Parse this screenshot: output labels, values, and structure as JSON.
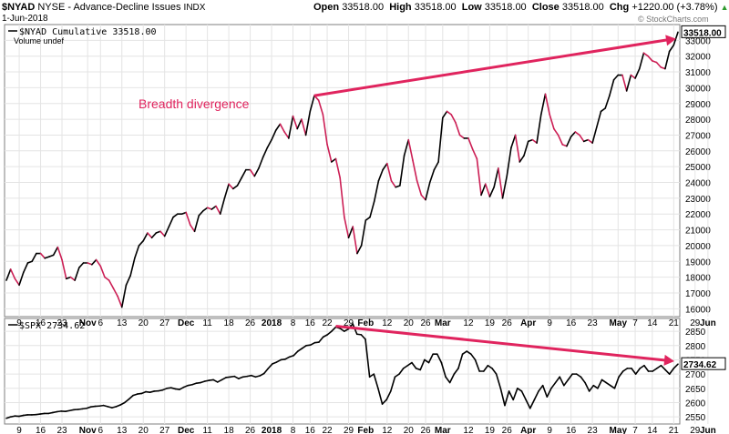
{
  "header": {
    "symbol": "$NYAD",
    "exchange_desc": "NYSE - Advance-Decline Issues",
    "index_tag": "INDX",
    "date": "1-Jun-2018",
    "open_label": "Open",
    "open": "33518.00",
    "high_label": "High",
    "high": "33518.00",
    "low_label": "Low",
    "low": "33518.00",
    "close_label": "Close",
    "close": "33518.00",
    "chg_label": "Chg",
    "chg": "+1220.00 (+3.78%)",
    "chg_arrow": "▲",
    "credit": "© StockCharts.com"
  },
  "colors": {
    "up": "#000000",
    "down": "#cc1f55",
    "arrow": "#e0245e",
    "grid": "#e4e4e4",
    "frame": "#7f7f7f"
  },
  "chart_data": [
    {
      "type": "line",
      "legend": "$NYAD Cumulative 33518.00",
      "legend2": "Volume undef",
      "last_value_label": "33518.00",
      "annotation": "Breadth divergence",
      "ylim": [
        15500,
        34000
      ],
      "yticks": [
        16000,
        17000,
        18000,
        19000,
        20000,
        21000,
        22000,
        23000,
        24000,
        25000,
        26000,
        27000,
        28000,
        29000,
        30000,
        31000,
        32000,
        33000
      ],
      "values": [
        17800,
        18500,
        17900,
        17500,
        18300,
        18900,
        19000,
        19500,
        19500,
        19200,
        19300,
        19400,
        19900,
        19100,
        17900,
        18000,
        17800,
        18600,
        18900,
        18900,
        18800,
        19100,
        18700,
        18000,
        17800,
        17300,
        16800,
        16100,
        17500,
        18100,
        19200,
        20000,
        20300,
        20800,
        20500,
        20800,
        20900,
        20600,
        21200,
        21800,
        22000,
        22000,
        22100,
        21300,
        20900,
        21900,
        22200,
        22400,
        22300,
        22500,
        22000,
        23000,
        23900,
        23600,
        23800,
        24300,
        24800,
        24800,
        24400,
        24900,
        25600,
        26200,
        26700,
        27300,
        27700,
        27200,
        26800,
        28200,
        27400,
        28000,
        27000,
        28500,
        29500,
        29200,
        28300,
        26400,
        25300,
        25500,
        24300,
        21800,
        20500,
        21200,
        19500,
        20000,
        21600,
        21800,
        22800,
        24100,
        24800,
        25200,
        24100,
        23700,
        23800,
        25700,
        26700,
        25400,
        24100,
        23200,
        22900,
        24000,
        24800,
        25300,
        28100,
        28500,
        28300,
        27800,
        27000,
        26800,
        26800,
        26100,
        25500,
        23200,
        23900,
        23100,
        23700,
        24900,
        23000,
        24400,
        26200,
        27000,
        25300,
        25700,
        26600,
        26700,
        26500,
        28300,
        29600,
        28300,
        27400,
        27000,
        26400,
        26300,
        26900,
        27200,
        27000,
        26600,
        26700,
        26500,
        27500,
        28500,
        28700,
        29500,
        30500,
        30800,
        30800,
        29800,
        30800,
        30600,
        31200,
        32200,
        32000,
        31700,
        31600,
        31300,
        31200,
        32300,
        32700,
        33518
      ],
      "xticks": [
        {
          "label": "9",
          "i": 3
        },
        {
          "label": "16",
          "i": 8
        },
        {
          "label": "23",
          "i": 13
        },
        {
          "label": "Nov",
          "i": 19,
          "bold": true
        },
        {
          "label": "6",
          "i": 22
        },
        {
          "label": "13",
          "i": 27
        },
        {
          "label": "20",
          "i": 32
        },
        {
          "label": "27",
          "i": 37
        },
        {
          "label": "Dec",
          "i": 42,
          "bold": true
        },
        {
          "label": "11",
          "i": 47
        },
        {
          "label": "18",
          "i": 52
        },
        {
          "label": "26",
          "i": 57
        },
        {
          "label": "2018",
          "i": 62,
          "bold": true
        },
        {
          "label": "8",
          "i": 67
        },
        {
          "label": "16",
          "i": 71
        },
        {
          "label": "22",
          "i": 75
        },
        {
          "label": "29",
          "i": 80
        },
        {
          "label": "Feb",
          "i": 84,
          "bold": true
        },
        {
          "label": "12",
          "i": 89
        },
        {
          "label": "20",
          "i": 94
        },
        {
          "label": "26",
          "i": 98
        },
        {
          "label": "Mar",
          "i": 102,
          "bold": true
        },
        {
          "label": "12",
          "i": 108
        },
        {
          "label": "19",
          "i": 113
        },
        {
          "label": "26",
          "i": 117
        },
        {
          "label": "Apr",
          "i": 122,
          "bold": true
        },
        {
          "label": "9",
          "i": 127
        },
        {
          "label": "16",
          "i": 132
        },
        {
          "label": "23",
          "i": 137
        },
        {
          "label": "May",
          "i": 143,
          "bold": true
        },
        {
          "label": "7",
          "i": 147
        },
        {
          "label": "14",
          "i": 151
        },
        {
          "label": "21",
          "i": 156
        },
        {
          "label": "29",
          "i": 161
        },
        {
          "label": "Jun",
          "i": 164,
          "bold": true
        }
      ]
    },
    {
      "type": "line",
      "legend": "$SPX 2734.62",
      "last_value_label": "2734.62",
      "ylim": [
        2525,
        2895
      ],
      "yticks": [
        2550,
        2600,
        2650,
        2700,
        2750,
        2800,
        2850
      ],
      "values": [
        2545,
        2550,
        2553,
        2552,
        2555,
        2557,
        2557,
        2558,
        2560,
        2562,
        2562,
        2565,
        2568,
        2570,
        2569,
        2572,
        2575,
        2576,
        2578,
        2580,
        2585,
        2587,
        2588,
        2590,
        2586,
        2582,
        2586,
        2592,
        2600,
        2612,
        2625,
        2630,
        2632,
        2638,
        2636,
        2640,
        2641,
        2644,
        2650,
        2652,
        2648,
        2646,
        2654,
        2660,
        2663,
        2668,
        2670,
        2675,
        2678,
        2680,
        2672,
        2680,
        2688,
        2690,
        2692,
        2684,
        2690,
        2692,
        2695,
        2690,
        2694,
        2702,
        2720,
        2736,
        2742,
        2750,
        2752,
        2760,
        2765,
        2780,
        2790,
        2800,
        2802,
        2810,
        2812,
        2830,
        2838,
        2850,
        2865,
        2860,
        2850,
        2858,
        2876,
        2840,
        2838,
        2822,
        2690,
        2700,
        2650,
        2595,
        2610,
        2640,
        2690,
        2700,
        2720,
        2730,
        2740,
        2720,
        2715,
        2750,
        2740,
        2770,
        2770,
        2740,
        2690,
        2670,
        2700,
        2720,
        2770,
        2780,
        2770,
        2750,
        2710,
        2710,
        2730,
        2720,
        2700,
        2650,
        2590,
        2640,
        2610,
        2650,
        2640,
        2610,
        2580,
        2610,
        2640,
        2660,
        2620,
        2650,
        2670,
        2690,
        2660,
        2680,
        2700,
        2700,
        2690,
        2670,
        2640,
        2660,
        2650,
        2680,
        2670,
        2660,
        2650,
        2690,
        2710,
        2720,
        2720,
        2700,
        2720,
        2730,
        2710,
        2710,
        2720,
        2730,
        2715,
        2700,
        2720,
        2735
      ]
    }
  ]
}
